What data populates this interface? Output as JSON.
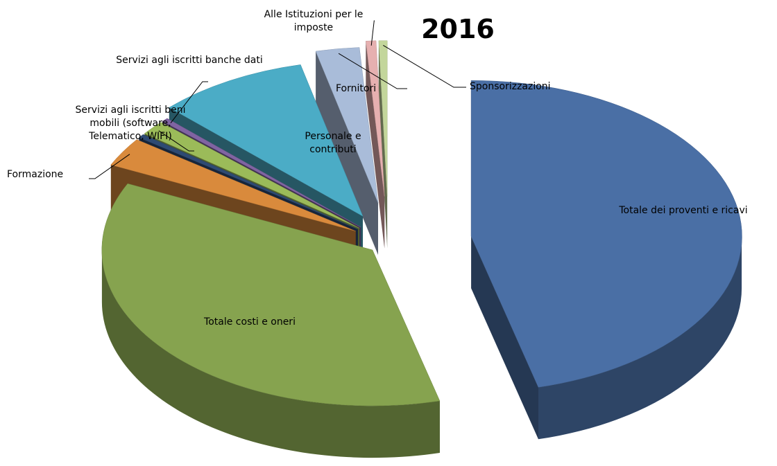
{
  "chart_data": {
    "type": "pie3d",
    "title": "2016",
    "categories": [
      "Totale dei proventi e ricavi",
      "Totale costi e oneri",
      "Formazione",
      null,
      "Servizi agli iscritti beni mobili (software, Telematico, WIFI)",
      "Servizi agli iscritti banche dati",
      "Personale e contributi",
      "Fornitori",
      "Alle Istituzioni per le imposte",
      "Sponsorizzazioni"
    ],
    "values": [
      46,
      36,
      3,
      0.4,
      1.5,
      0.4,
      9,
      2.6,
      0.6,
      0.5
    ],
    "colors": [
      "#4a6fa5",
      "#86a34f",
      "#d98a3c",
      "#2e4a73",
      "#9bbb59",
      "#8064a2",
      "#4bacc6",
      "#a9bcd9",
      "#e6b0b0",
      "#c3d69b"
    ]
  }
}
